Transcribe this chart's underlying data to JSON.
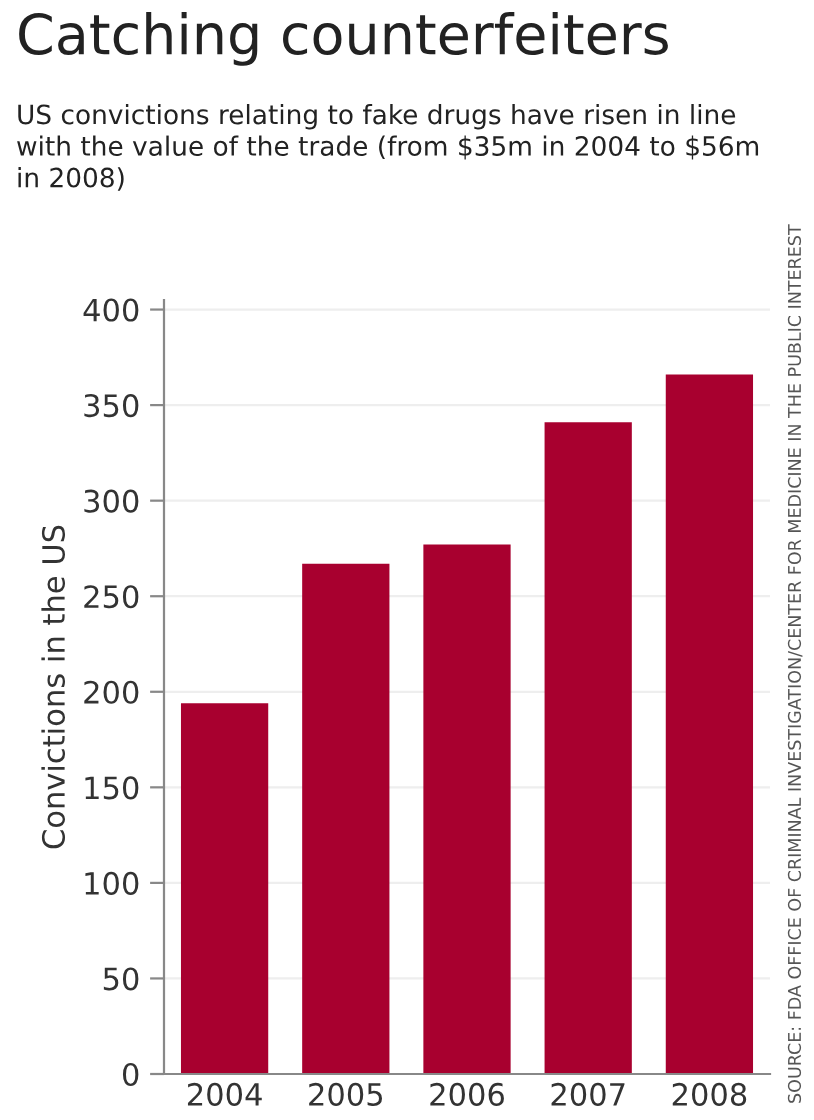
{
  "chart_data": {
    "type": "bar",
    "title": "Catching counterfeiters",
    "subtitle": "US convictions relating to fake drugs have risen in line with the value of the trade (from $35m in 2004 to $56m in 2008)",
    "ylabel": "Convictions in the US",
    "categories": [
      "2004",
      "2005",
      "2006",
      "2007",
      "2008"
    ],
    "values": [
      194,
      267,
      277,
      341,
      366
    ],
    "color": "#a8002f",
    "ylim": [
      0,
      405
    ],
    "yticks": [
      0,
      50,
      100,
      150,
      200,
      250,
      300,
      350,
      400
    ],
    "grid": "y",
    "annotations": [
      "SOURCE: FDA OFFICE OF CRIMINAL INVESTIGATION/CENTER FOR MEDICINE IN THE PUBLIC INTEREST"
    ]
  }
}
